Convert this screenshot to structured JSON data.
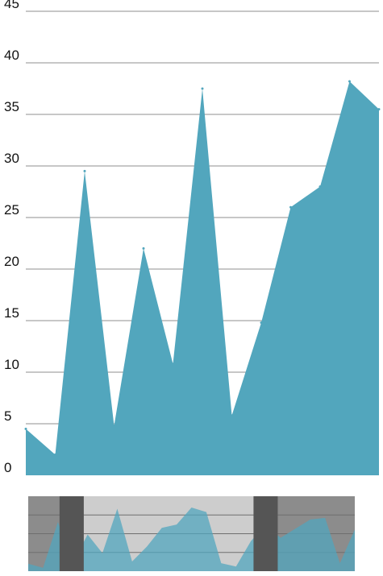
{
  "chart_data": {
    "type": "area",
    "title": "",
    "xlabel": "",
    "ylabel": "",
    "ylim": [
      0,
      45
    ],
    "yticks": [
      "0",
      "5",
      "10",
      "15",
      "20",
      "25",
      "30",
      "35",
      "40",
      "45"
    ],
    "grid": true,
    "x": [
      0,
      1,
      2,
      3,
      4,
      5,
      6,
      7,
      8,
      9,
      10,
      11,
      12,
      13,
      14,
      15,
      16,
      17,
      18,
      19,
      20,
      21,
      22
    ],
    "series": [
      {
        "values": [
          4.5,
          2,
          29.5,
          4.8,
          22,
          10.8,
          37.5,
          5.8,
          14.8,
          26,
          28,
          38.2,
          35.5,
          4.8,
          2.8,
          18,
          28,
          20,
          25.5,
          31,
          32,
          4.8,
          25
        ]
      }
    ],
    "visible_range": [
      0,
      12
    ],
    "navigator": {
      "selection_range": [
        7,
        18
      ],
      "grid": true
    },
    "colors": {
      "area": "#52a6bd",
      "grid": "#8f8f8f",
      "navigator_outside": "#8c8c8c",
      "navigator_selected": "#cdcdcd",
      "navigator_handle": "#555555"
    }
  }
}
